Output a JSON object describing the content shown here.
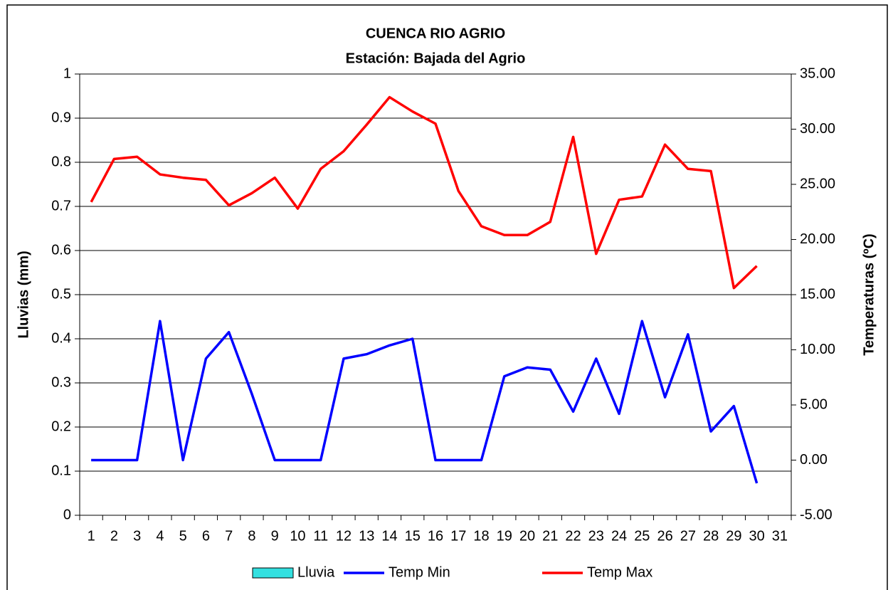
{
  "chart_data": {
    "type": "line",
    "title": "CUENCA RIO AGRIO",
    "subtitle": "Estación: Bajada del Agrio",
    "y_label": "Lluvias (mm)",
    "y2_label": "Temperaturas (ºC)",
    "categories": [
      "1",
      "2",
      "3",
      "4",
      "5",
      "6",
      "7",
      "8",
      "9",
      "10",
      "11",
      "12",
      "13",
      "14",
      "15",
      "16",
      "17",
      "18",
      "19",
      "20",
      "21",
      "22",
      "23",
      "24",
      "25",
      "26",
      "27",
      "28",
      "29",
      "30",
      "31"
    ],
    "series": [
      {
        "name": "Lluvia",
        "type": "bar",
        "axis": "y",
        "color": "#33e0e0",
        "values": [
          0,
          0,
          0,
          0,
          0,
          0,
          0,
          0,
          0,
          0,
          0,
          0,
          0,
          0,
          0,
          0,
          0,
          0,
          0,
          0,
          0,
          0,
          0,
          0,
          0,
          0,
          0,
          0,
          0,
          0,
          null
        ]
      },
      {
        "name": "Temp Min",
        "type": "line",
        "axis": "y2",
        "color": "#0000ff",
        "values": [
          0,
          0,
          0,
          12.6,
          0,
          9.2,
          11.6,
          6.0,
          0,
          0,
          0,
          9.2,
          9.6,
          10.4,
          11.0,
          0,
          0,
          0,
          7.6,
          8.4,
          8.2,
          4.4,
          9.2,
          4.2,
          12.6,
          5.7,
          11.4,
          2.6,
          4.9,
          -2.1,
          null
        ]
      },
      {
        "name": "Temp Max",
        "type": "line",
        "axis": "y2",
        "color": "#ff0000",
        "values": [
          23.4,
          27.3,
          27.5,
          25.9,
          25.6,
          25.4,
          23.1,
          24.2,
          25.6,
          22.8,
          26.4,
          28.0,
          30.4,
          32.9,
          31.6,
          30.5,
          24.4,
          21.2,
          20.4,
          20.4,
          21.6,
          29.3,
          18.7,
          23.6,
          23.9,
          28.6,
          26.4,
          26.2,
          15.6,
          17.6,
          null
        ]
      }
    ],
    "ylim": [
      0,
      1
    ],
    "yticks": [
      0,
      0.1,
      0.2,
      0.3,
      0.4,
      0.5,
      0.6,
      0.7,
      0.8,
      0.9,
      1
    ],
    "y2lim": [
      -5,
      35
    ],
    "y2ticks": [
      {
        "value": -5,
        "label": "-5.00"
      },
      {
        "value": 0,
        "label": "0.00"
      },
      {
        "value": 5,
        "label": "5.00"
      },
      {
        "value": 10,
        "label": "10.00"
      },
      {
        "value": 15,
        "label": "15.00"
      },
      {
        "value": 20,
        "label": "20.00"
      },
      {
        "value": 25,
        "label": "25.00"
      },
      {
        "value": 30,
        "label": "30.00"
      },
      {
        "value": 35,
        "label": "35.00"
      }
    ],
    "grid": true,
    "legend": "bottom"
  }
}
